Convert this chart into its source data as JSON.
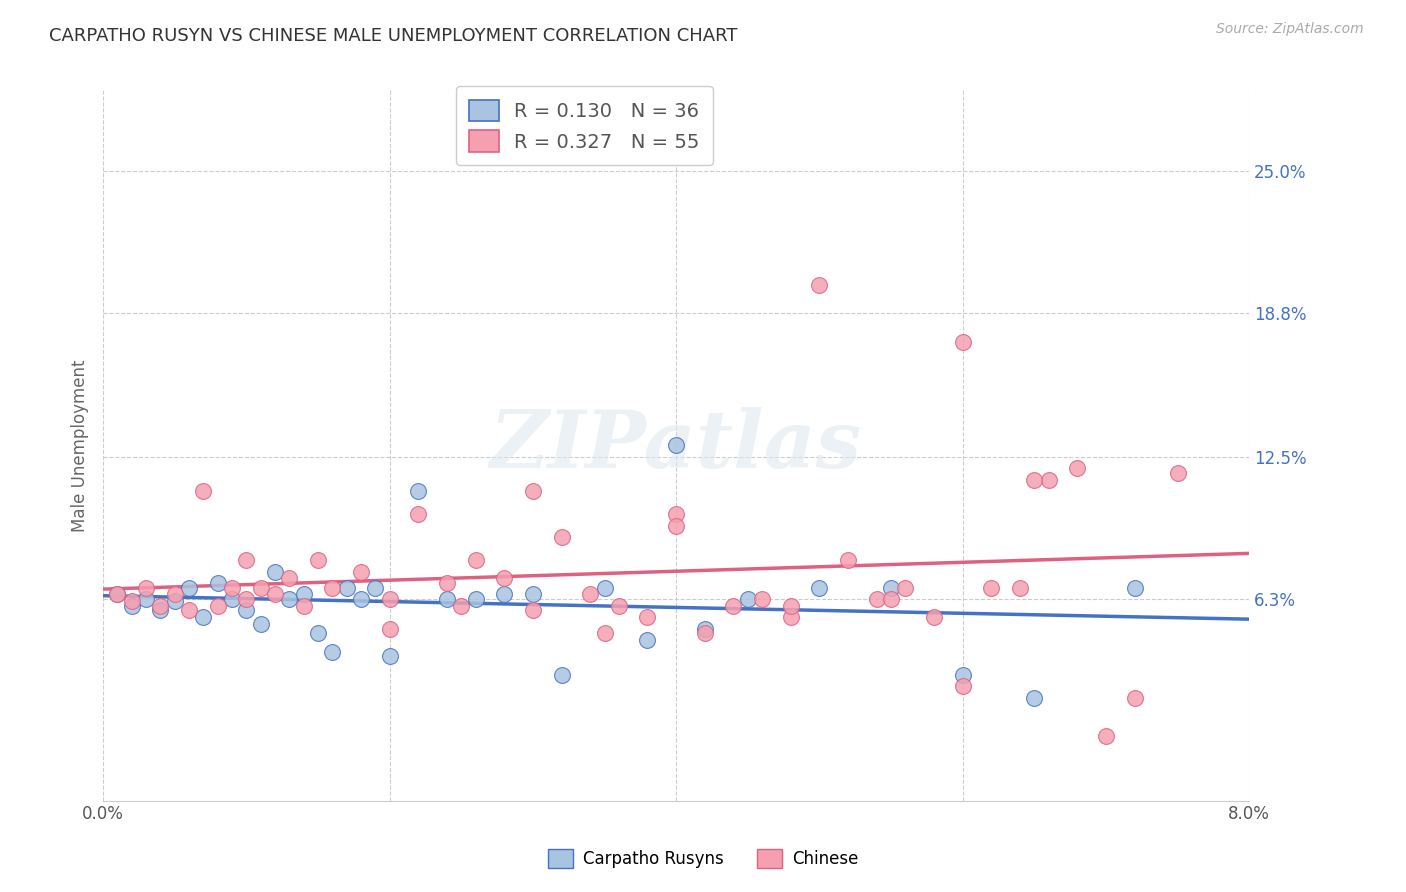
{
  "title": "CARPATHO RUSYN VS CHINESE MALE UNEMPLOYMENT CORRELATION CHART",
  "source": "Source: ZipAtlas.com",
  "ylabel": "Male Unemployment",
  "ytick_labels": [
    "25.0%",
    "18.8%",
    "12.5%",
    "6.3%"
  ],
  "ytick_values": [
    0.25,
    0.188,
    0.125,
    0.063
  ],
  "xlim": [
    0.0,
    0.08
  ],
  "ylim": [
    -0.025,
    0.285
  ],
  "carpatho_color": "#a8c4e0",
  "chinese_color": "#f4a0b0",
  "trend_carpatho_color": "#4472c4",
  "trend_chinese_color": "#e06080",
  "background_color": "#ffffff",
  "watermark": "ZIPatlas",
  "carpatho_R": 0.13,
  "carpatho_N": 36,
  "chinese_R": 0.327,
  "chinese_N": 55,
  "carpatho_x": [
    0.001,
    0.002,
    0.003,
    0.004,
    0.005,
    0.006,
    0.007,
    0.008,
    0.009,
    0.01,
    0.011,
    0.012,
    0.013,
    0.014,
    0.015,
    0.016,
    0.017,
    0.018,
    0.019,
    0.02,
    0.022,
    0.024,
    0.026,
    0.028,
    0.03,
    0.032,
    0.035,
    0.038,
    0.04,
    0.042,
    0.045,
    0.05,
    0.055,
    0.06,
    0.065,
    0.072
  ],
  "carpatho_y": [
    0.065,
    0.06,
    0.063,
    0.058,
    0.062,
    0.068,
    0.055,
    0.07,
    0.063,
    0.058,
    0.052,
    0.075,
    0.063,
    0.065,
    0.048,
    0.04,
    0.068,
    0.063,
    0.068,
    0.038,
    0.11,
    0.063,
    0.063,
    0.065,
    0.065,
    0.03,
    0.068,
    0.045,
    0.13,
    0.05,
    0.063,
    0.068,
    0.068,
    0.03,
    0.02,
    0.068
  ],
  "chinese_x": [
    0.001,
    0.002,
    0.003,
    0.004,
    0.005,
    0.006,
    0.007,
    0.008,
    0.009,
    0.01,
    0.011,
    0.012,
    0.013,
    0.014,
    0.015,
    0.016,
    0.018,
    0.02,
    0.022,
    0.024,
    0.026,
    0.028,
    0.03,
    0.032,
    0.034,
    0.036,
    0.038,
    0.04,
    0.042,
    0.044,
    0.046,
    0.048,
    0.05,
    0.052,
    0.054,
    0.056,
    0.058,
    0.06,
    0.062,
    0.064,
    0.066,
    0.068,
    0.01,
    0.02,
    0.025,
    0.03,
    0.035,
    0.04,
    0.048,
    0.055,
    0.06,
    0.065,
    0.07,
    0.072,
    0.075
  ],
  "chinese_y": [
    0.065,
    0.062,
    0.068,
    0.06,
    0.065,
    0.058,
    0.11,
    0.06,
    0.068,
    0.063,
    0.068,
    0.065,
    0.072,
    0.06,
    0.08,
    0.068,
    0.075,
    0.063,
    0.1,
    0.07,
    0.08,
    0.072,
    0.11,
    0.09,
    0.065,
    0.06,
    0.055,
    0.1,
    0.048,
    0.06,
    0.063,
    0.055,
    0.2,
    0.08,
    0.063,
    0.068,
    0.055,
    0.175,
    0.068,
    0.068,
    0.115,
    0.12,
    0.08,
    0.05,
    0.06,
    0.058,
    0.048,
    0.095,
    0.06,
    0.063,
    0.025,
    0.115,
    0.003,
    0.02,
    0.118
  ]
}
